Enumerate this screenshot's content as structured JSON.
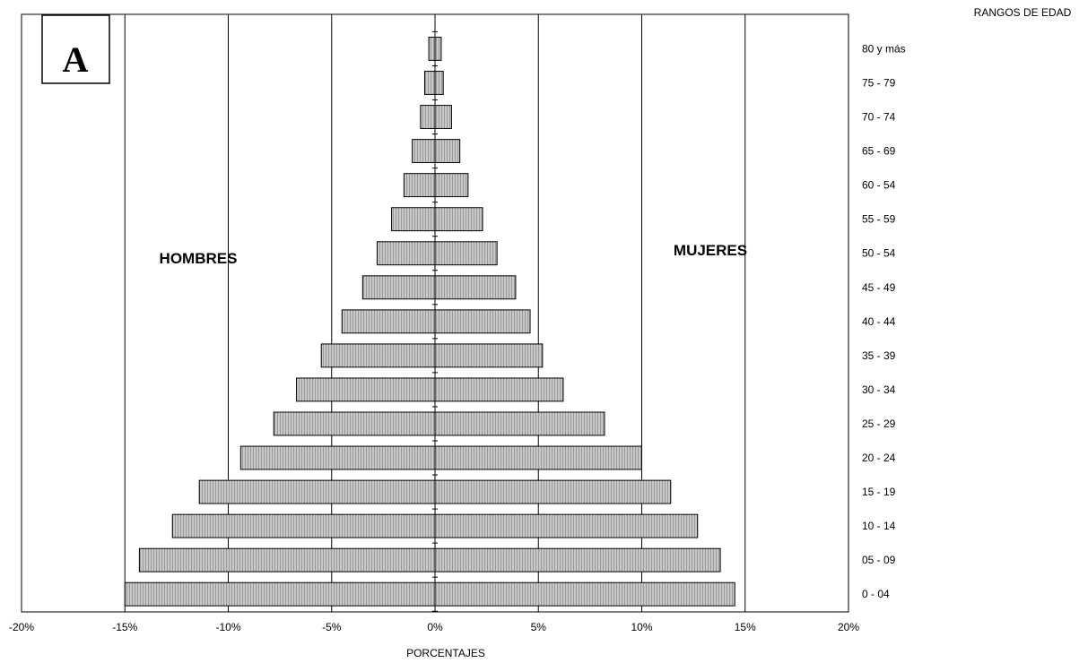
{
  "chart_data": {
    "type": "bar",
    "orientation": "horizontal",
    "panel_label": "A",
    "ylabel": "RANGOS DE EDAD",
    "xlabel": "PORCENTAJES",
    "xlim": [
      -20,
      20
    ],
    "x_ticks": [
      -20,
      -15,
      -10,
      -5,
      0,
      5,
      10,
      15,
      20
    ],
    "x_tick_labels": [
      "-20%",
      "-15%",
      "-10%",
      "-5%",
      "0%",
      "5%",
      "10%",
      "15%",
      "20%"
    ],
    "grid": "vertical",
    "bar_color": "#c8c8c8",
    "categories": [
      "0 - 04",
      "05 - 09",
      "10 - 14",
      "15 - 19",
      "20 - 24",
      "25 - 29",
      "30 - 34",
      "35 - 39",
      "40 - 44",
      "45 - 49",
      "50 - 54",
      "55 - 59",
      "60 - 54",
      "65 - 69",
      "70 - 74",
      "75 - 79",
      "80 y más"
    ],
    "series": [
      {
        "name": "HOMBRES",
        "values": [
          -15.0,
          -14.3,
          -12.7,
          -11.4,
          -9.4,
          -7.8,
          -6.7,
          -5.5,
          -4.5,
          -3.5,
          -2.8,
          -2.1,
          -1.5,
          -1.1,
          -0.7,
          -0.5,
          -0.3
        ]
      },
      {
        "name": "MUJERES",
        "values": [
          14.5,
          13.8,
          12.7,
          11.4,
          10.0,
          8.2,
          6.2,
          5.2,
          4.6,
          3.9,
          3.0,
          2.3,
          1.6,
          1.2,
          0.8,
          0.4,
          0.3
        ]
      }
    ]
  }
}
